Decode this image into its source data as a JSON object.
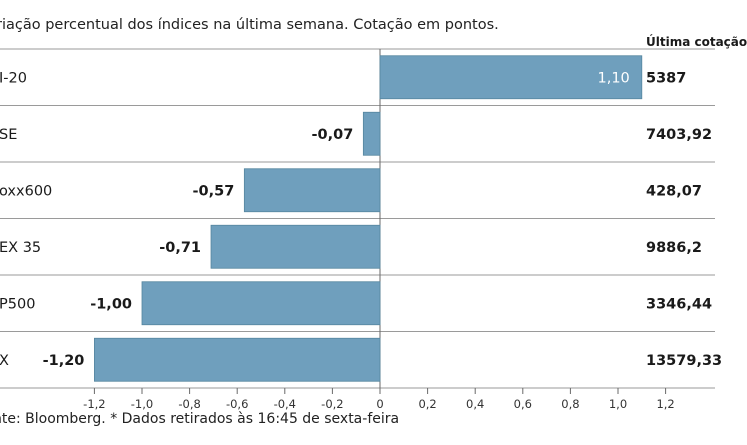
{
  "subtitle": "riação percentual dos índices na última semana. Cotação em pontos.",
  "column_header": "Última cotação",
  "source": "nte: Bloomberg.  * Dados retirados às 16:45 de sexta-feira",
  "colors": {
    "bar": "#6f9fbd",
    "bar_stroke": "#55869f",
    "grid": "#9a9a9a",
    "axis": "#6a6a6a",
    "value_inside": "#ffffff"
  },
  "chart_data": {
    "type": "bar",
    "orientation": "horizontal",
    "title": "riação percentual dos índices na última semana. Cotação em pontos.",
    "categories": [
      "I-20",
      "SE",
      "oxx600",
      "EX 35",
      "P500",
      "X"
    ],
    "values": [
      1.1,
      -0.07,
      -0.57,
      -0.71,
      -1.0,
      -1.2
    ],
    "value_labels": [
      "1,10",
      "-0,07",
      "-0,57",
      "-0,71",
      "-1,00",
      "-1,20"
    ],
    "last_quote_labels": [
      "5387",
      "7403,92",
      "428,07",
      "9886,2",
      "3346,44",
      "13579,33"
    ],
    "xlim": [
      -1.25,
      1.35
    ],
    "x_ticks": [
      -1.2,
      -1.0,
      -0.8,
      -0.6,
      -0.4,
      -0.2,
      0,
      0.2,
      0.4,
      0.6,
      0.8,
      1.0,
      1.2
    ],
    "x_tick_labels": [
      "-1,2",
      "-1,0",
      "-0,8",
      "-0,6",
      "-0,4",
      "-0,2",
      "0",
      "0,2",
      "0,4",
      "0,6",
      "0,8",
      "1,0",
      "1,2"
    ]
  }
}
